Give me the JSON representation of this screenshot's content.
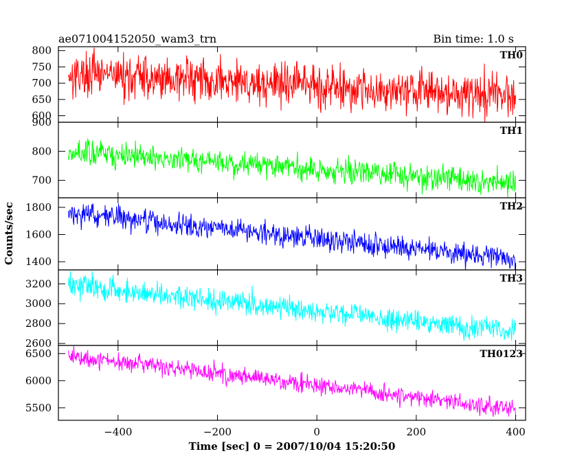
{
  "chart_data": {
    "type": "line",
    "title": "ae071004152050_wam3_trn",
    "bin_time_label": "Bin time: 1.0 s",
    "xlabel": "Time [sec] 0 = 2007/10/04 15:20:50",
    "ylabel": "Counts/sec",
    "xlim": [
      -520,
      420
    ],
    "x_ticks": [
      -400,
      -200,
      0,
      200,
      400
    ],
    "x_tick_labels": [
      "−400",
      "−200",
      "0",
      "200",
      "400"
    ],
    "x_range": [
      -500,
      400
    ],
    "grid": false,
    "panels": [
      {
        "name": "TH0",
        "color": "#ff0000",
        "ylim": [
          580,
          812
        ],
        "y_ticks": [
          600,
          650,
          700,
          750,
          800
        ],
        "start": 730,
        "end": 660,
        "noise": 34
      },
      {
        "name": "TH1",
        "color": "#00ff00",
        "ylim": [
          640,
          900
        ],
        "y_ticks": [
          700,
          800,
          900
        ],
        "start": 800,
        "end": 690,
        "noise": 22
      },
      {
        "name": "TH2",
        "color": "#0000ff",
        "ylim": [
          1340,
          1870
        ],
        "y_ticks": [
          1400,
          1600,
          1800
        ],
        "start": 1760,
        "end": 1420,
        "noise": 42
      },
      {
        "name": "TH3",
        "color": "#00ffff",
        "ylim": [
          2580,
          3340
        ],
        "y_ticks": [
          2600,
          2800,
          3000,
          3200
        ],
        "start": 3190,
        "end": 2720,
        "noise": 60
      },
      {
        "name": "TH0123",
        "color": "#ff00ff",
        "ylim": [
          5270,
          6650
        ],
        "y_ticks": [
          5500,
          6000,
          6500
        ],
        "start": 6470,
        "end": 5470,
        "noise": 85
      }
    ]
  }
}
